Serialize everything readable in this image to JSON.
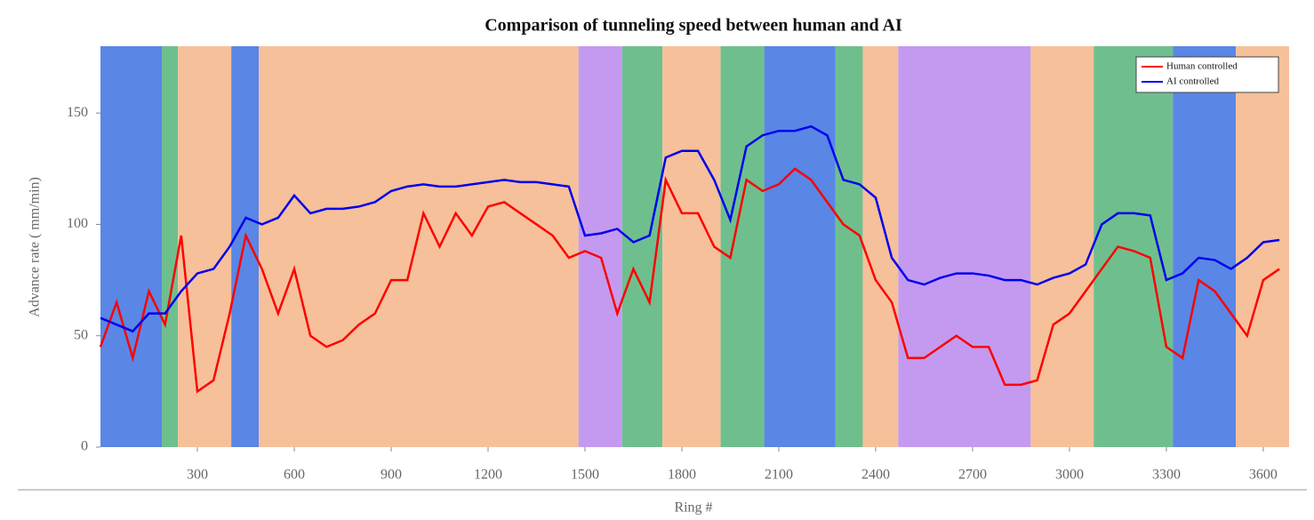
{
  "chart_data": {
    "type": "line",
    "title": "Comparison of tunneling speed between human and AI",
    "x_label": "Ring #",
    "y_label": "Advance rate ( mm/min)",
    "xlim": [
      0,
      3680
    ],
    "ylim": [
      0,
      180
    ],
    "xticks": [
      300,
      600,
      900,
      1200,
      1500,
      1800,
      2100,
      2400,
      2700,
      3000,
      3300,
      3600
    ],
    "yticks": [
      0,
      50,
      100,
      150
    ],
    "legend": "upper right",
    "background_bands": [
      {
        "start": 0,
        "end": 190,
        "color": "#5a86e6"
      },
      {
        "start": 190,
        "end": 240,
        "color": "#6fbf8e"
      },
      {
        "start": 240,
        "end": 405,
        "color": "#f6c09a"
      },
      {
        "start": 405,
        "end": 490,
        "color": "#5a86e6"
      },
      {
        "start": 490,
        "end": 1480,
        "color": "#f6c09a"
      },
      {
        "start": 1480,
        "end": 1615,
        "color": "#c49af0"
      },
      {
        "start": 1615,
        "end": 1740,
        "color": "#6fbf8e"
      },
      {
        "start": 1740,
        "end": 1920,
        "color": "#f6c09a"
      },
      {
        "start": 1920,
        "end": 2055,
        "color": "#6fbf8e"
      },
      {
        "start": 2055,
        "end": 2275,
        "color": "#5a86e6"
      },
      {
        "start": 2275,
        "end": 2360,
        "color": "#6fbf8e"
      },
      {
        "start": 2360,
        "end": 2470,
        "color": "#f6c09a"
      },
      {
        "start": 2470,
        "end": 2880,
        "color": "#c49af0"
      },
      {
        "start": 2880,
        "end": 3075,
        "color": "#f6c09a"
      },
      {
        "start": 3075,
        "end": 3320,
        "color": "#6fbf8e"
      },
      {
        "start": 3320,
        "end": 3515,
        "color": "#5a86e6"
      },
      {
        "start": 3515,
        "end": 3680,
        "color": "#f6c09a"
      }
    ],
    "x": [
      0,
      50,
      100,
      150,
      200,
      250,
      300,
      350,
      400,
      450,
      500,
      550,
      600,
      650,
      700,
      750,
      800,
      850,
      900,
      950,
      1000,
      1050,
      1100,
      1150,
      1200,
      1250,
      1300,
      1350,
      1400,
      1450,
      1500,
      1550,
      1600,
      1650,
      1700,
      1750,
      1800,
      1850,
      1900,
      1950,
      2000,
      2050,
      2100,
      2150,
      2200,
      2250,
      2300,
      2350,
      2400,
      2450,
      2500,
      2550,
      2600,
      2650,
      2700,
      2750,
      2800,
      2850,
      2900,
      2950,
      3000,
      3050,
      3100,
      3150,
      3200,
      3250,
      3300,
      3350,
      3400,
      3450,
      3500,
      3550,
      3600,
      3650
    ],
    "series": [
      {
        "name": "Human controlled",
        "color": "#ff0000",
        "values": [
          45,
          65,
          40,
          70,
          55,
          95,
          25,
          30,
          60,
          95,
          80,
          60,
          80,
          50,
          45,
          48,
          55,
          60,
          75,
          75,
          105,
          90,
          105,
          95,
          108,
          110,
          105,
          100,
          95,
          85,
          88,
          85,
          60,
          80,
          65,
          120,
          105,
          105,
          90,
          85,
          120,
          115,
          118,
          125,
          120,
          110,
          100,
          95,
          75,
          65,
          40,
          40,
          45,
          50,
          45,
          45,
          28,
          28,
          30,
          55,
          60,
          70,
          80,
          90,
          88,
          85,
          45,
          40,
          75,
          70,
          60,
          50,
          75,
          80
        ]
      },
      {
        "name": "AI controlled",
        "color": "#0000ee",
        "values": [
          58,
          55,
          52,
          60,
          60,
          70,
          78,
          80,
          90,
          103,
          100,
          103,
          113,
          105,
          107,
          107,
          108,
          110,
          115,
          117,
          118,
          117,
          117,
          118,
          119,
          120,
          119,
          119,
          118,
          117,
          95,
          96,
          98,
          92,
          95,
          130,
          133,
          133,
          120,
          102,
          135,
          140,
          142,
          142,
          144,
          140,
          120,
          118,
          112,
          85,
          75,
          73,
          76,
          78,
          78,
          77,
          75,
          75,
          73,
          76,
          78,
          82,
          100,
          105,
          105,
          104,
          75,
          78,
          85,
          84,
          80,
          85,
          92,
          93
        ]
      }
    ]
  }
}
